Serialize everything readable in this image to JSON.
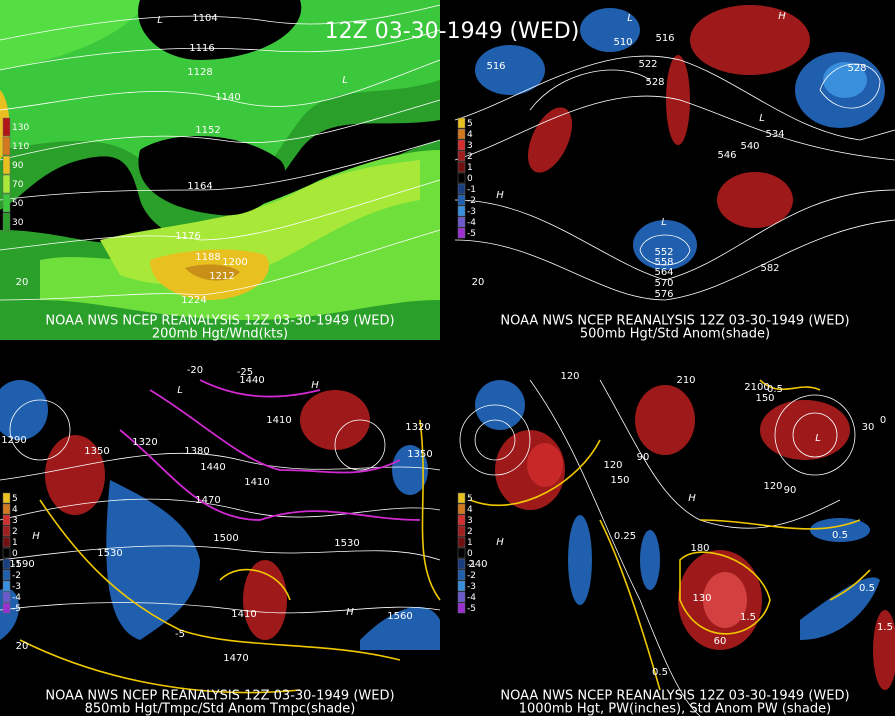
{
  "header": {
    "title": "12Z 03-30-1949 (WED)"
  },
  "panels": [
    {
      "caption": [
        "NOAA NWS NCEP REANALYSIS 12Z 03-30-1949 (WED)",
        "200mb Hgt/Wnd(kts)"
      ],
      "legend": [
        "130",
        "110",
        "90",
        "70",
        "50",
        "30"
      ],
      "labels": [
        "1104",
        "1116",
        "1128",
        "1140",
        "1152",
        "1164",
        "1176",
        "1188",
        "1200",
        "1212",
        "1224",
        "20",
        "L",
        "L"
      ]
    },
    {
      "caption": [
        "NOAA NWS NCEP REANALYSIS 12Z 03-30-1949 (WED)",
        "500mb Hgt/Std Anom(shade)"
      ],
      "legend": [
        "5",
        "4",
        "3",
        "2",
        "1",
        "0",
        "-1",
        "-2",
        "-3",
        "-4",
        "-5"
      ],
      "labels": [
        "510",
        "516",
        "522",
        "528",
        "516",
        "528",
        "534",
        "540",
        "546",
        "552",
        "558",
        "564",
        "570",
        "576",
        "582",
        "20",
        "L",
        "L",
        "L",
        "H",
        "H"
      ]
    },
    {
      "caption": [
        "NOAA NWS NCEP REANALYSIS 12Z 03-30-1949 (WED)",
        "850mb Hgt/Tmpc/Std Anom Tmpc(shade)"
      ],
      "legend": [
        "5",
        "4",
        "3",
        "2",
        "1",
        "0",
        "-1",
        "-2",
        "-3",
        "-4",
        "-5"
      ],
      "labels": [
        "1290",
        "1320",
        "1350",
        "1380",
        "1440",
        "1410",
        "1470",
        "1500",
        "1530",
        "1530",
        "1560",
        "1470",
        "1410",
        "1590",
        "1440",
        "1410",
        "1350",
        "1320",
        "20",
        "-20",
        "-25",
        "-5",
        "H",
        "H",
        "L",
        "H"
      ]
    },
    {
      "caption": [
        "NOAA NWS NCEP REANALYSIS 12Z 03-30-1949 (WED)",
        "1000mb Hgt, PW(inches), Std Anom PW (shade)"
      ],
      "legend": [
        "5",
        "4",
        "3",
        "2",
        "1",
        "0",
        "-1",
        "-2",
        "-3",
        "-4",
        "-5"
      ],
      "labels": [
        "120",
        "210",
        "2100",
        "150",
        "90",
        "150",
        "120",
        "0.25",
        "0.5",
        "0.5",
        "1.5",
        "1.5",
        "0.5",
        "130",
        "60",
        "180",
        "240",
        "120",
        "90",
        "0",
        "30",
        "0.5",
        "H",
        "H",
        "L"
      ]
    }
  ]
}
